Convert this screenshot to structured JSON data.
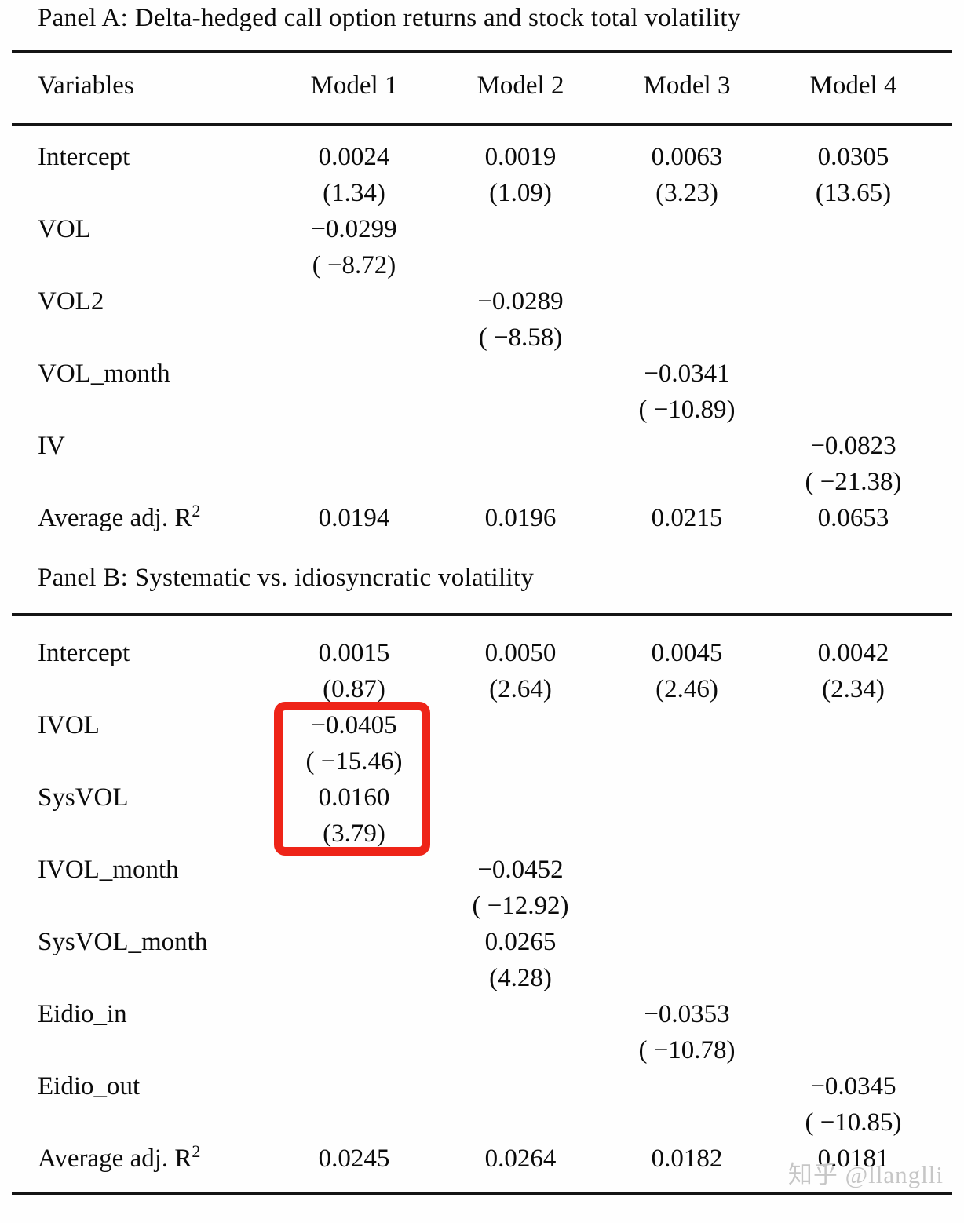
{
  "panel_a": {
    "title": "Panel A: Delta-hedged call option returns and stock total volatility",
    "columns": [
      "Variables",
      "Model 1",
      "Model 2",
      "Model 3",
      "Model 4"
    ],
    "rows": [
      {
        "label": "Intercept",
        "cells": [
          {
            "coef": "0.0024",
            "t": "(1.34)"
          },
          {
            "coef": "0.0019",
            "t": "(1.09)"
          },
          {
            "coef": "0.0063",
            "t": "(3.23)"
          },
          {
            "coef": "0.0305",
            "t": "(13.65)"
          }
        ]
      },
      {
        "label": "VOL",
        "cells": [
          {
            "coef": "−0.0299",
            "t": "( −8.72)"
          },
          null,
          null,
          null
        ]
      },
      {
        "label": "VOL2",
        "cells": [
          null,
          {
            "coef": "−0.0289",
            "t": "( −8.58)"
          },
          null,
          null
        ]
      },
      {
        "label": "VOL_month",
        "cells": [
          null,
          null,
          {
            "coef": "−0.0341",
            "t": "( −10.89)"
          },
          null
        ]
      },
      {
        "label": "IV",
        "cells": [
          null,
          null,
          null,
          {
            "coef": "−0.0823",
            "t": "( −21.38)"
          }
        ]
      }
    ],
    "summary": {
      "label": "Average adj. R",
      "label_sup": "2",
      "values": [
        "0.0194",
        "0.0196",
        "0.0215",
        "0.0653"
      ]
    }
  },
  "panel_b": {
    "title": "Panel B: Systematic vs. idiosyncratic volatility",
    "rows": [
      {
        "label": "Intercept",
        "cells": [
          {
            "coef": "0.0015",
            "t": "(0.87)"
          },
          {
            "coef": "0.0050",
            "t": "(2.64)"
          },
          {
            "coef": "0.0045",
            "t": "(2.46)"
          },
          {
            "coef": "0.0042",
            "t": "(2.34)"
          }
        ]
      },
      {
        "label": "IVOL",
        "highlighted": true,
        "cells": [
          {
            "coef": "−0.0405",
            "t": "( −15.46)"
          },
          null,
          null,
          null
        ]
      },
      {
        "label": "SysVOL",
        "highlighted": true,
        "cells": [
          {
            "coef": "0.0160",
            "t": "(3.79)"
          },
          null,
          null,
          null
        ]
      },
      {
        "label": "IVOL_month",
        "cells": [
          null,
          {
            "coef": "−0.0452",
            "t": "( −12.92)"
          },
          null,
          null
        ]
      },
      {
        "label": "SysVOL_month",
        "cells": [
          null,
          {
            "coef": "0.0265",
            "t": "(4.28)"
          },
          null,
          null
        ]
      },
      {
        "label": "Eidio_in",
        "cells": [
          null,
          null,
          {
            "coef": "−0.0353",
            "t": "( −10.78)"
          },
          null
        ]
      },
      {
        "label": "Eidio_out",
        "cells": [
          null,
          null,
          null,
          {
            "coef": "−0.0345",
            "t": "( −10.85)"
          }
        ]
      }
    ],
    "summary": {
      "label": "Average adj. R",
      "label_sup": "2",
      "values": [
        "0.0245",
        "0.0264",
        "0.0182",
        "0.0181"
      ]
    }
  },
  "highlight": {
    "color": "#ee2418",
    "rows": [
      "IVOL",
      "SysVOL"
    ],
    "model": "Model 1"
  },
  "watermark": {
    "text": "知乎 @llanglli",
    "color": "#c6c6c6"
  }
}
